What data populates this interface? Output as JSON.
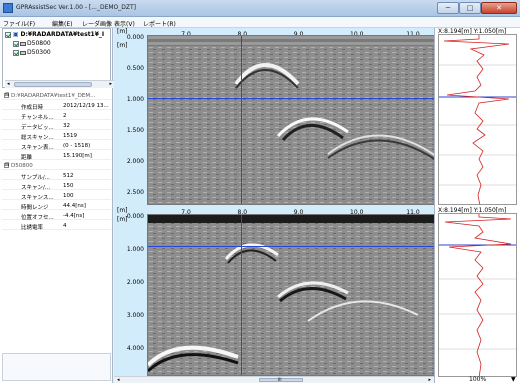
{
  "window": {
    "title": "GPRAssistSec Ver.1.00 - [..._DEMO_DZT]",
    "min": "─",
    "max": "□",
    "close": "✕"
  },
  "menu": [
    "ファイル(F)",
    "編集(E)",
    "レーダ画像",
    "表示(V)",
    "レポート(R)"
  ],
  "tree": {
    "root": "D:¥RADARDATA¥test1¥_I",
    "items": [
      "D50800",
      "D50300"
    ]
  },
  "props": [
    {
      "head": true,
      "toggle": "⊟",
      "key": "D:¥RADARDATA¥test1¥_DEM..."
    },
    {
      "key": "作成日時",
      "val": "2012/12/19 13..."
    },
    {
      "key": "チャンネル...",
      "val": "2"
    },
    {
      "key": "データビッ...",
      "val": "32"
    },
    {
      "key": "総スキャン...",
      "val": "1519"
    },
    {
      "key": "スキャン表...",
      "val": "(0 - 1518)"
    },
    {
      "key": "距離",
      "val": "15.190[m]"
    },
    {
      "head": true,
      "toggle": "⊟",
      "key": "D50800"
    },
    {
      "key": "サンプル/...",
      "val": "512"
    },
    {
      "key": "スキャン/...",
      "val": "150"
    },
    {
      "key": "スキャンス...",
      "val": "100"
    },
    {
      "key": "時間レンジ",
      "val": "44.4[ns]"
    },
    {
      "key": "位置オフセ...",
      "val": "-4.4[ns]"
    },
    {
      "key": "比誘電率",
      "val": "4"
    }
  ],
  "top_panel": {
    "unit_x": "[m]",
    "unit_y": "[m]",
    "x_ticks": [
      "7.0",
      "8.0",
      "9.0",
      "10.0",
      "11.0"
    ],
    "y_ticks": [
      "0.000",
      "0.500",
      "1.000",
      "1.500",
      "2.000",
      "2.500"
    ],
    "coord": "X:8.194[m]  Y:1.050[m]"
  },
  "bottom_panel": {
    "unit_x": "[m]",
    "unit_y": "[m]",
    "x_ticks": [
      "7.0",
      "8.0",
      "9.0",
      "10.0",
      "11.0"
    ],
    "y_ticks": [
      "0.000",
      "1.000",
      "2.000",
      "3.000",
      "4.000"
    ],
    "coord": "X:8.194[m]  Y:1.050[m]"
  },
  "scroll": {
    "mid_label": "III"
  },
  "zoom": {
    "label": "100%",
    "caret": "▼"
  }
}
